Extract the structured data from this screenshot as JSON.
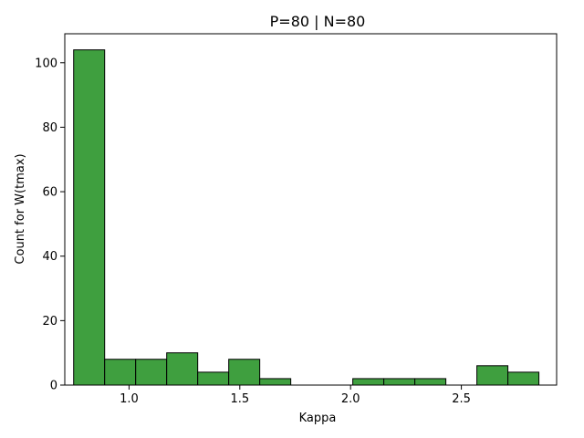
{
  "chart_data": {
    "type": "bar",
    "title": "P=80 | N=80",
    "xlabel": "Kappa",
    "ylabel": "Count for W(tmax)",
    "bar_color": "#3f9f3f",
    "edge_color": "#000000",
    "xlim": [
      0.71,
      2.93
    ],
    "ylim": [
      0,
      109
    ],
    "bins": [
      {
        "x0": 0.75,
        "x1": 0.89,
        "count": 104
      },
      {
        "x0": 0.89,
        "x1": 1.03,
        "count": 8
      },
      {
        "x0": 1.03,
        "x1": 1.17,
        "count": 8
      },
      {
        "x0": 1.17,
        "x1": 1.31,
        "count": 10
      },
      {
        "x0": 1.31,
        "x1": 1.45,
        "count": 4
      },
      {
        "x0": 1.45,
        "x1": 1.59,
        "count": 8
      },
      {
        "x0": 1.59,
        "x1": 1.73,
        "count": 2
      },
      {
        "x0": 1.73,
        "x1": 1.87,
        "count": 0
      },
      {
        "x0": 1.87,
        "x1": 2.01,
        "count": 0
      },
      {
        "x0": 2.01,
        "x1": 2.15,
        "count": 2
      },
      {
        "x0": 2.15,
        "x1": 2.29,
        "count": 2
      },
      {
        "x0": 2.29,
        "x1": 2.43,
        "count": 2
      },
      {
        "x0": 2.43,
        "x1": 2.57,
        "count": 0
      },
      {
        "x0": 2.57,
        "x1": 2.71,
        "count": 6
      },
      {
        "x0": 2.71,
        "x1": 2.85,
        "count": 4
      }
    ],
    "xticks": [
      1.0,
      1.5,
      2.0,
      2.5
    ],
    "xtick_labels": [
      "1.0",
      "1.5",
      "2.0",
      "2.5"
    ],
    "yticks": [
      0,
      20,
      40,
      60,
      80,
      100
    ],
    "ytick_labels": [
      "0",
      "20",
      "40",
      "60",
      "80",
      "100"
    ]
  }
}
